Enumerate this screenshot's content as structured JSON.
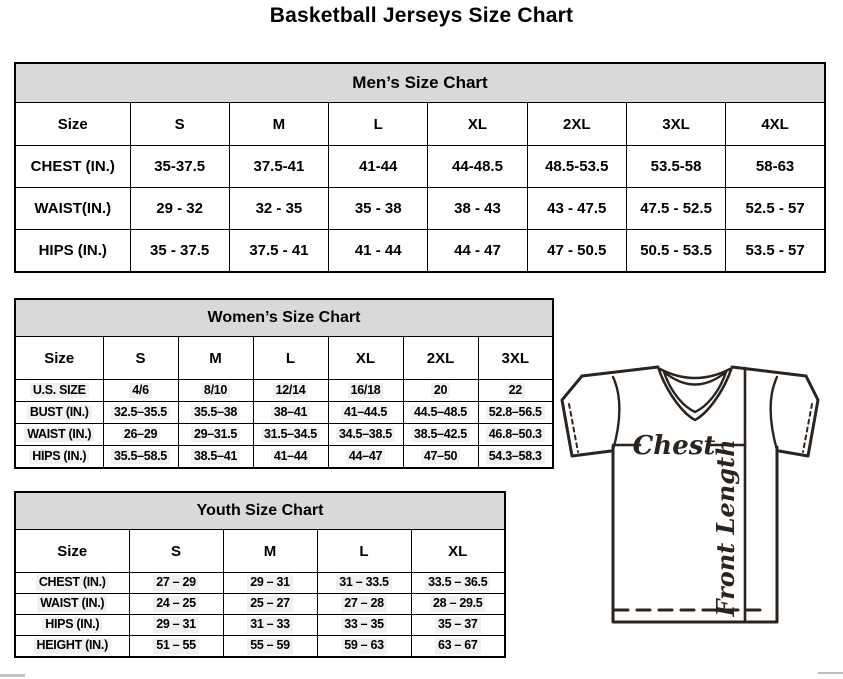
{
  "page": {
    "title": "Basketball Jerseys Size Chart"
  },
  "colors": {
    "table_header_bg": "#d9d9d9",
    "table_border": "#000000",
    "value_highlight_bg": "#f1f1ef",
    "diagram_stroke": "#2b231e"
  },
  "tables": {
    "mens": {
      "title": "Men’s Size Chart",
      "columns": [
        "Size",
        "S",
        "M",
        "L",
        "XL",
        "2XL",
        "3XL",
        "4XL"
      ],
      "highlight": false,
      "rows": [
        {
          "label": "CHEST (IN.)",
          "values": [
            "35-37.5",
            "37.5-41",
            "41-44",
            "44-48.5",
            "48.5-53.5",
            "53.5-58",
            "58-63"
          ]
        },
        {
          "label": "WAIST(IN.)",
          "values": [
            "29 - 32",
            "32 - 35",
            "35 - 38",
            "38 - 43",
            "43 - 47.5",
            "47.5 - 52.5",
            "52.5 - 57"
          ]
        },
        {
          "label": "HIPS (IN.)",
          "values": [
            "35 - 37.5",
            "37.5 - 41",
            "41 - 44",
            "44 - 47",
            "47 - 50.5",
            "50.5 - 53.5",
            "53.5 - 57"
          ]
        }
      ]
    },
    "womens": {
      "title": "Women’s Size Chart",
      "columns": [
        "Size",
        "S",
        "M",
        "L",
        "XL",
        "2XL",
        "3XL"
      ],
      "highlight": true,
      "rows": [
        {
          "label": "U.S. SIZE",
          "values": [
            "4/6",
            "8/10",
            "12/14",
            "16/18",
            "20",
            "22"
          ]
        },
        {
          "label": "BUST (IN.)",
          "values": [
            "32.5–35.5",
            "35.5–38",
            "38–41",
            "41–44.5",
            "44.5–48.5",
            "52.8–56.5"
          ]
        },
        {
          "label": "WAIST (IN.)",
          "values": [
            "26–29",
            "29–31.5",
            "31.5–34.5",
            "34.5–38.5",
            "38.5–42.5",
            "46.8–50.3"
          ]
        },
        {
          "label": "HIPS (IN.)",
          "values": [
            "35.5–58.5",
            "38.5–41",
            "41–44",
            "44–47",
            "47–50",
            "54.3–58.3"
          ]
        }
      ]
    },
    "youth": {
      "title": "Youth Size Chart",
      "columns": [
        "Size",
        "S",
        "M",
        "L",
        "XL"
      ],
      "highlight": true,
      "rows": [
        {
          "label": "CHEST (IN.)",
          "values": [
            "27 – 29",
            "29 – 31",
            "31 – 33.5",
            "33.5 – 36.5"
          ]
        },
        {
          "label": "WAIST (IN.)",
          "values": [
            "24 – 25",
            "25 – 27",
            "27 – 28",
            "28 – 29.5"
          ]
        },
        {
          "label": "HIPS (IN.)",
          "values": [
            "29 – 31",
            "31 – 33",
            "33 – 35",
            "35 – 37"
          ]
        },
        {
          "label": "HEIGHT (IN.)",
          "values": [
            "51 – 55",
            "55 – 59",
            "59 – 63",
            "63 – 67"
          ]
        }
      ]
    }
  },
  "diagram": {
    "chest_label": "Chest",
    "front_length_label": "Front Length"
  }
}
